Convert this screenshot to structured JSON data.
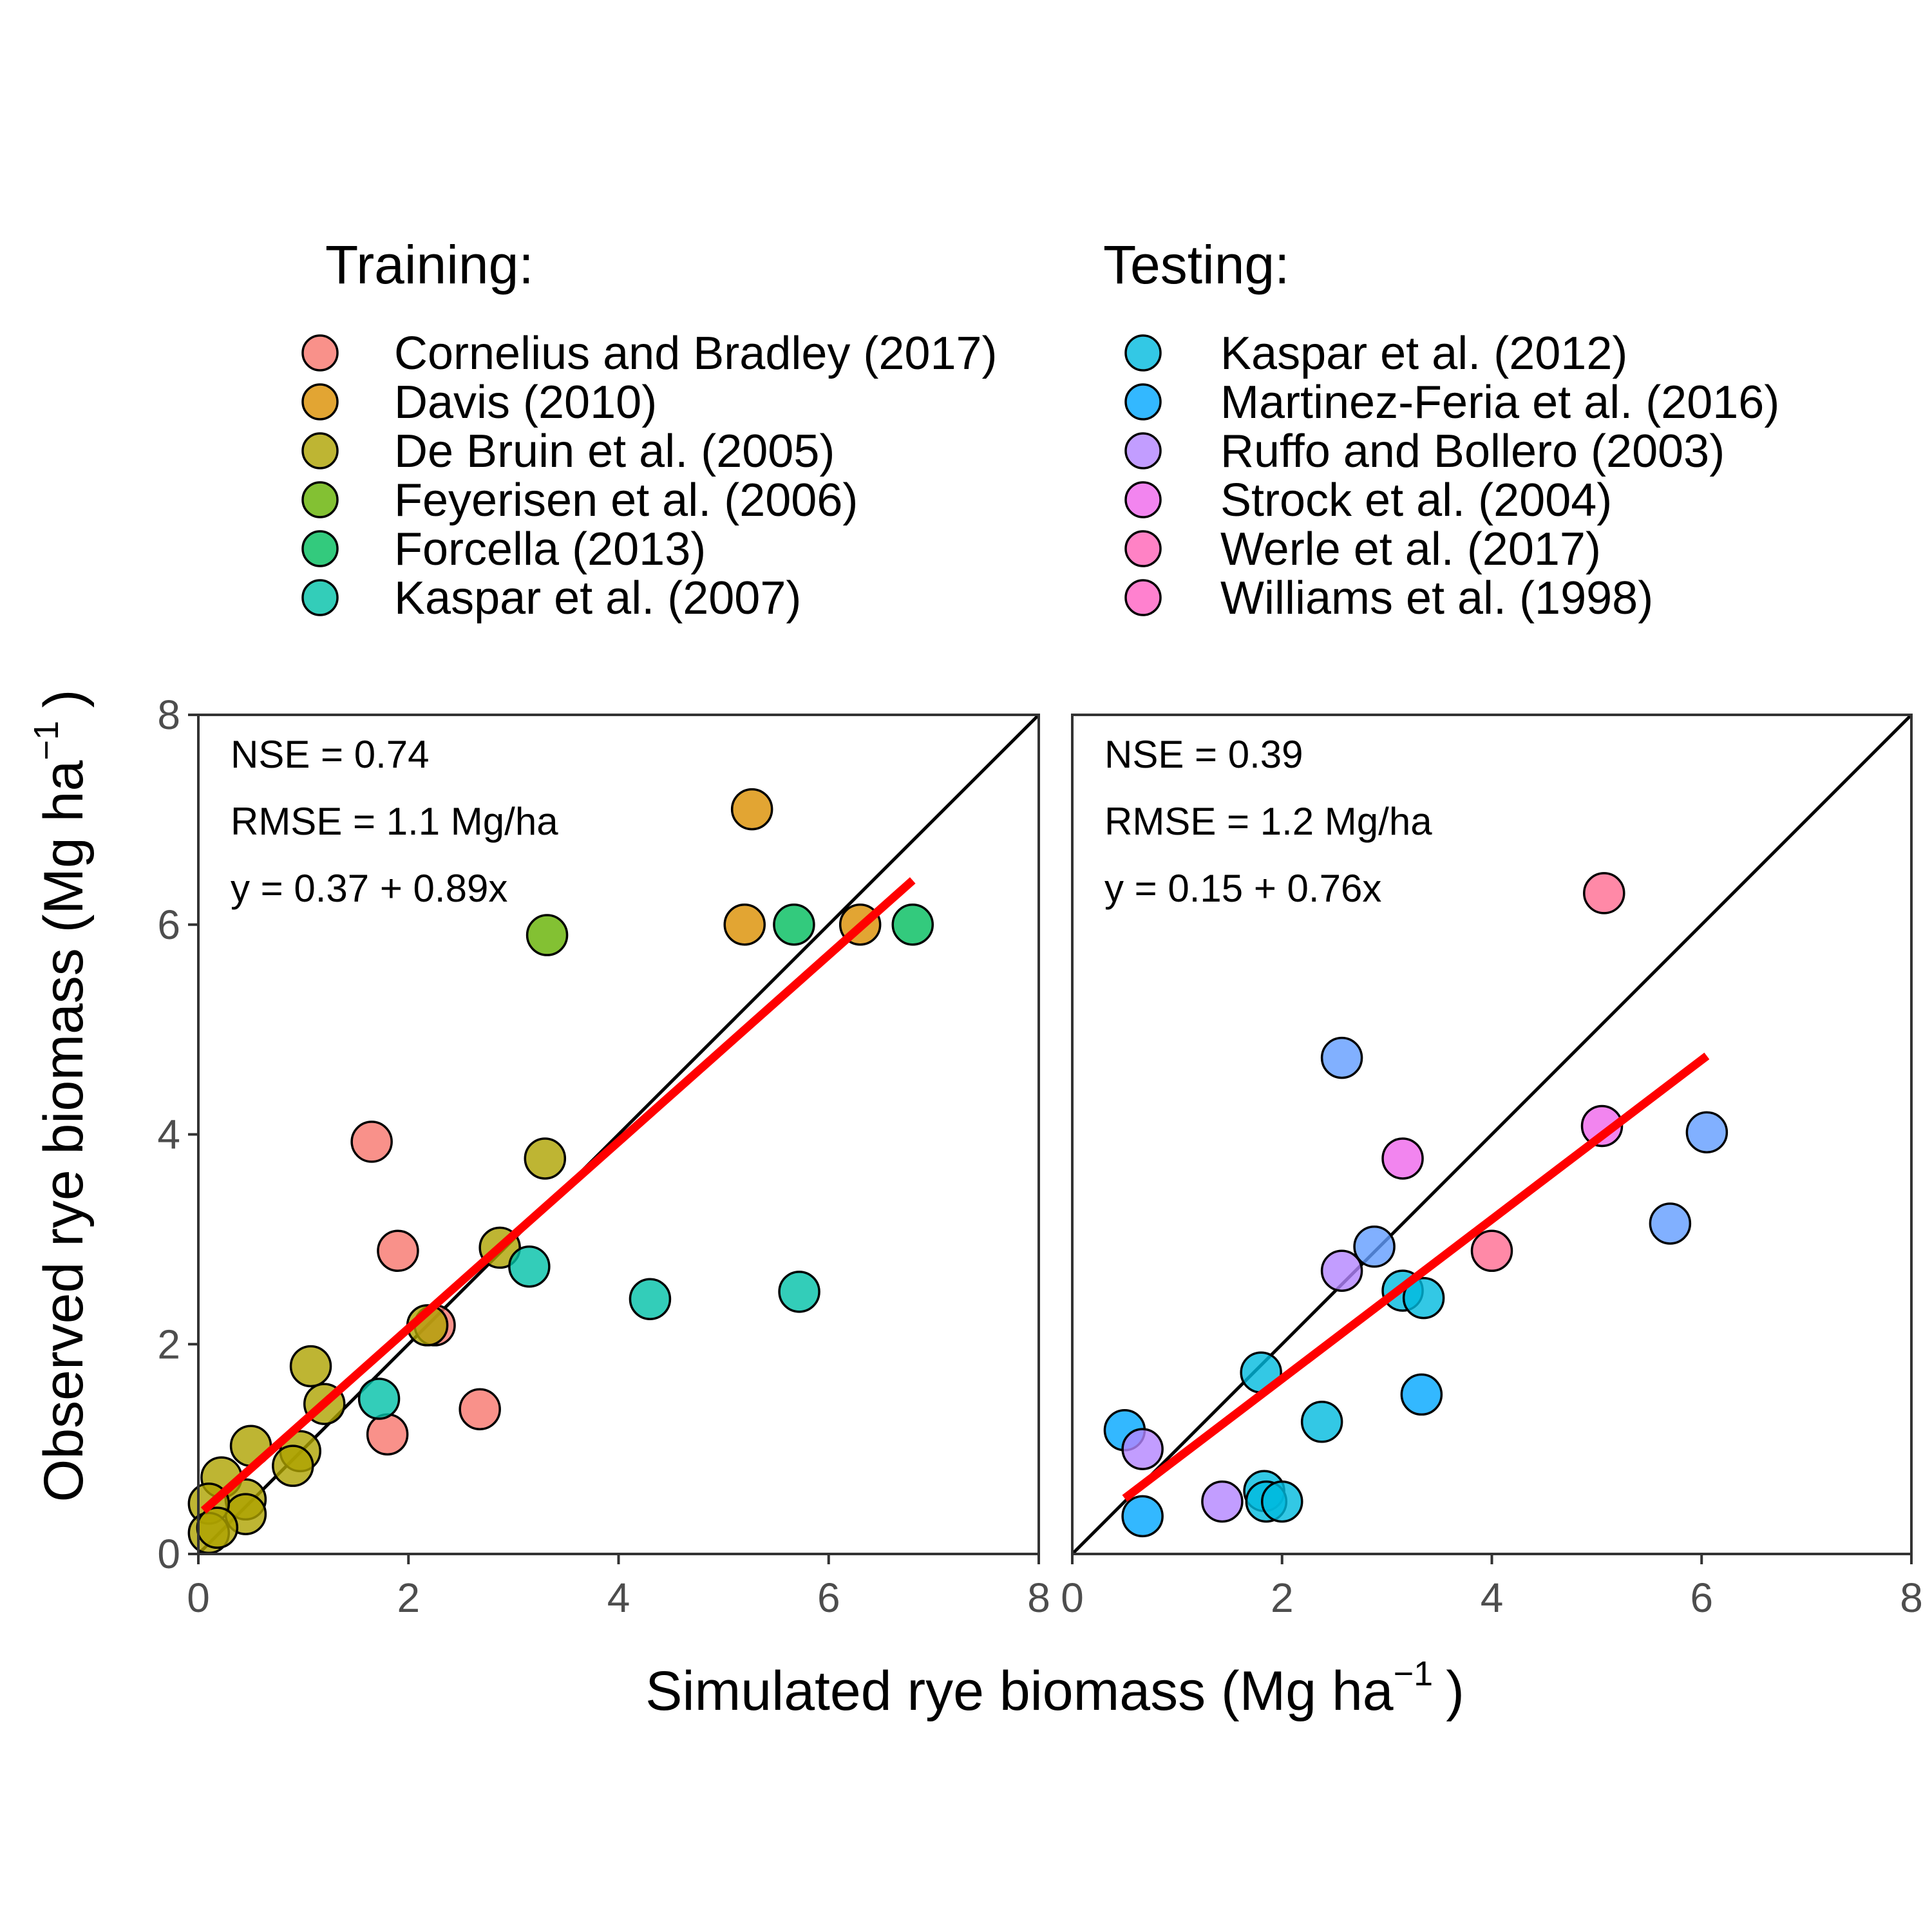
{
  "chart_data": {
    "type": "scatter",
    "xlabel": "Simulated rye biomass (Mg ha",
    "xlabel_sup": "−1",
    "xlabel_end": ")",
    "ylabel": "Observed rye biomass (Mg ha",
    "ylabel_sup": "−1",
    "ylabel_end": ")",
    "xlim": [
      0,
      8
    ],
    "ylim": [
      0,
      8
    ],
    "ticks": [
      "0",
      "2",
      "4",
      "6",
      "8"
    ],
    "grid": false,
    "legend_placement": "top",
    "legend_groups": [
      {
        "title": "Training:",
        "entries": [
          {
            "label": "Cornelius and Bradley (2017)",
            "color": "#F8766D"
          },
          {
            "label": "Davis (2010)",
            "color": "#DB8E00"
          },
          {
            "label": "De Bruin et al. (2005)",
            "color": "#AEA200"
          },
          {
            "label": "Feyerisen et al. (2006)",
            "color": "#64B200"
          },
          {
            "label": "Forcella (2013)",
            "color": "#00BD5C"
          },
          {
            "label": "Kaspar et al. (2007)",
            "color": "#00C1A7"
          }
        ]
      },
      {
        "title": "Testing:",
        "entries": [
          {
            "label": "Kaspar et al. (2012)",
            "color": "#00BADE"
          },
          {
            "label": "Martinez-Feria et al. (2016)",
            "color": "#00A6FF"
          },
          {
            "label": "Ruffo and Bollero (2003)",
            "color": "#B385FF"
          },
          {
            "label": "Strock et al. (2004)",
            "color": "#EF67EB"
          },
          {
            "label": "Werle et al. (2017)",
            "color": "#FF63B6"
          },
          {
            "label": "Williams et al. (1998)",
            "color": "#FF61C3"
          }
        ]
      }
    ],
    "panels": [
      {
        "stats": [
          "NSE = 0.74",
          "RMSE = 1.1 Mg/ha",
          "y = 0.37 + 0.89x"
        ],
        "fit": {
          "intercept": 0.37,
          "slope": 0.89,
          "x_range": [
            0.05,
            6.8
          ]
        },
        "points": [
          {
            "x": 1.65,
            "y": 3.93,
            "c": "#F8766D"
          },
          {
            "x": 1.9,
            "y": 2.89,
            "c": "#F8766D"
          },
          {
            "x": 2.25,
            "y": 2.18,
            "c": "#F8766D"
          },
          {
            "x": 2.68,
            "y": 1.38,
            "c": "#F8766D"
          },
          {
            "x": 1.8,
            "y": 1.14,
            "c": "#F8766D"
          },
          {
            "x": 5.27,
            "y": 7.1,
            "c": "#DB8E00"
          },
          {
            "x": 5.2,
            "y": 6.0,
            "c": "#DB8E00"
          },
          {
            "x": 6.3,
            "y": 6.0,
            "c": "#DB8E00"
          },
          {
            "x": 3.3,
            "y": 3.77,
            "c": "#AEA200"
          },
          {
            "x": 2.87,
            "y": 2.92,
            "c": "#AEA200"
          },
          {
            "x": 2.18,
            "y": 2.18,
            "c": "#AEA200"
          },
          {
            "x": 1.07,
            "y": 1.79,
            "c": "#AEA200"
          },
          {
            "x": 1.2,
            "y": 1.43,
            "c": "#AEA200"
          },
          {
            "x": 0.97,
            "y": 0.98,
            "c": "#AEA200"
          },
          {
            "x": 0.9,
            "y": 0.84,
            "c": "#AEA200"
          },
          {
            "x": 0.5,
            "y": 1.03,
            "c": "#AEA200"
          },
          {
            "x": 0.22,
            "y": 0.73,
            "c": "#AEA200"
          },
          {
            "x": 0.45,
            "y": 0.52,
            "c": "#AEA200"
          },
          {
            "x": 0.45,
            "y": 0.38,
            "c": "#AEA200"
          },
          {
            "x": 0.1,
            "y": 0.48,
            "c": "#AEA200"
          },
          {
            "x": 0.1,
            "y": 0.2,
            "c": "#AEA200"
          },
          {
            "x": 0.18,
            "y": 0.25,
            "c": "#AEA200"
          },
          {
            "x": 3.32,
            "y": 5.9,
            "c": "#64B200"
          },
          {
            "x": 5.67,
            "y": 6.0,
            "c": "#00BD5C"
          },
          {
            "x": 6.8,
            "y": 6.0,
            "c": "#00BD5C"
          },
          {
            "x": 1.72,
            "y": 1.48,
            "c": "#00C1A7"
          },
          {
            "x": 3.15,
            "y": 2.74,
            "c": "#00C1A7"
          },
          {
            "x": 4.3,
            "y": 2.43,
            "c": "#00C1A7"
          },
          {
            "x": 5.72,
            "y": 2.5,
            "c": "#00C1A7"
          }
        ]
      },
      {
        "stats": [
          "NSE = 0.39",
          "RMSE = 1.2 Mg/ha",
          "y = 0.15 + 0.76x"
        ],
        "fit": {
          "intercept": 0.15,
          "slope": 0.76,
          "x_range": [
            0.5,
            6.05
          ]
        },
        "points": [
          {
            "x": 1.8,
            "y": 1.73,
            "c": "#00BADE"
          },
          {
            "x": 2.38,
            "y": 1.26,
            "c": "#00BADE"
          },
          {
            "x": 1.83,
            "y": 0.6,
            "c": "#00BADE"
          },
          {
            "x": 1.85,
            "y": 0.5,
            "c": "#00BADE"
          },
          {
            "x": 2.0,
            "y": 0.5,
            "c": "#00BADE"
          },
          {
            "x": 3.15,
            "y": 2.51,
            "c": "#00BADE"
          },
          {
            "x": 3.35,
            "y": 2.44,
            "c": "#00BADE"
          },
          {
            "x": 0.5,
            "y": 1.18,
            "c": "#00A6FF"
          },
          {
            "x": 0.67,
            "y": 0.36,
            "c": "#00A6FF"
          },
          {
            "x": 3.33,
            "y": 1.52,
            "c": "#00A6FF"
          },
          {
            "x": 2.57,
            "y": 4.73,
            "c": "#619CFF"
          },
          {
            "x": 2.88,
            "y": 2.93,
            "c": "#619CFF"
          },
          {
            "x": 5.7,
            "y": 3.15,
            "c": "#619CFF"
          },
          {
            "x": 6.05,
            "y": 4.02,
            "c": "#619CFF"
          },
          {
            "x": 0.67,
            "y": 1.0,
            "c": "#B385FF"
          },
          {
            "x": 1.43,
            "y": 0.5,
            "c": "#B385FF"
          },
          {
            "x": 2.57,
            "y": 2.7,
            "c": "#B385FF"
          },
          {
            "x": 3.15,
            "y": 3.77,
            "c": "#EF67EB"
          },
          {
            "x": 5.05,
            "y": 4.08,
            "c": "#EF67EB"
          },
          {
            "x": 4.0,
            "y": 2.89,
            "c": "#FF6C91"
          },
          {
            "x": 5.07,
            "y": 6.3,
            "c": "#FF6C91"
          }
        ]
      }
    ]
  }
}
